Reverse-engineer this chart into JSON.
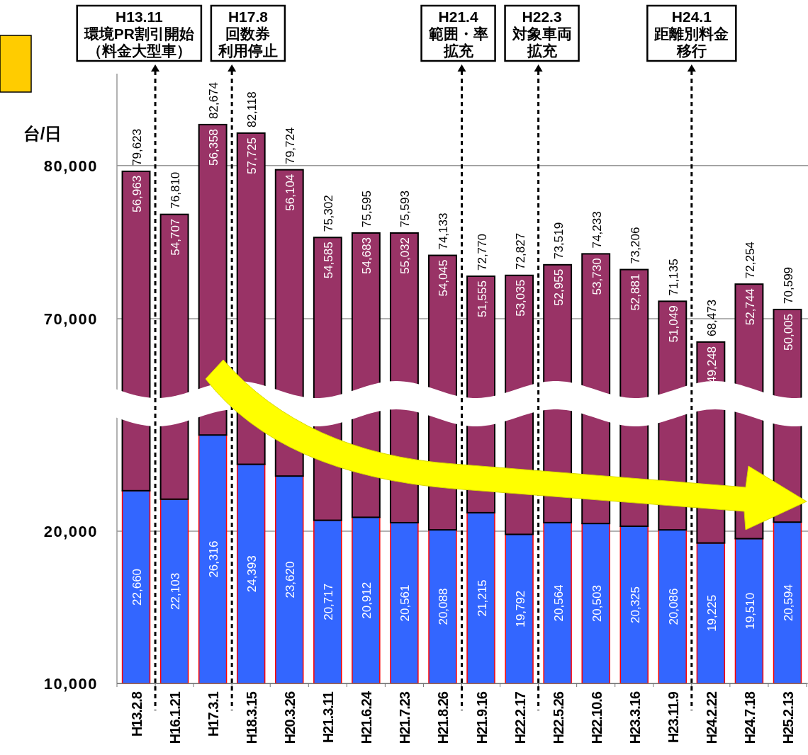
{
  "chart_data": [
    {
      "type": "bar",
      "ylabel": "台/日",
      "grid": "y",
      "ylim": [
        65000,
        86000
      ],
      "yticks": [
        {
          "value": 70000,
          "label": "70,000"
        },
        {
          "value": 80000,
          "label": "80,000"
        }
      ],
      "categories": [
        null,
        null,
        null,
        null,
        null,
        null,
        null,
        null,
        null,
        null,
        null,
        null,
        null,
        null,
        null,
        null,
        null,
        null
      ],
      "series": [
        {
          "color": "#993366",
          "values": [
            79623,
            76810,
            82674,
            82118,
            79724,
            75302,
            75595,
            75593,
            74133,
            72770,
            72827,
            73519,
            74233,
            73206,
            71135,
            68473,
            72254,
            70599
          ],
          "value_labels": [
            "79,623",
            "76,810",
            "82,674",
            "82,118",
            "79,724",
            "75,302",
            "75,595",
            "75,593",
            "74,133",
            "72,770",
            "72,827",
            "73,519",
            "74,233",
            "73,206",
            "71,135",
            "68,473",
            "72,254",
            "70,599"
          ]
        }
      ],
      "annotations": [
        "56,963",
        "54,707",
        "56,358",
        "57,725",
        "56,104",
        "54,585",
        "54,683",
        "55,032",
        "54,045",
        "51,555",
        "53,035",
        "52,955",
        "53,730",
        "52,881",
        "51,049",
        "49,248",
        "52,744",
        "50,005",
        "H13.11",
        "環境PR割引開始",
        "（料金大型車）",
        "H17.8",
        "回数券",
        "利用停止",
        "H21.4",
        "範囲・率",
        "拡充",
        "H22.3",
        "対象車両",
        "拡充",
        "H24.1",
        "距離別料金",
        "移行"
      ]
    },
    {
      "type": "bar",
      "grid": "y",
      "ylim": [
        10000,
        28000
      ],
      "yticks": [
        {
          "value": 10000,
          "label": "10,000"
        },
        {
          "value": 20000,
          "label": "20,000"
        }
      ],
      "categories": [
        "H13.2.8",
        "H16.1.21",
        "H17.3.1",
        "H18.3.15",
        "H20.3.26",
        "H21.3.11",
        "H21.6.24",
        "H21.7.23",
        "H21.8.26",
        "H21.9.16",
        "H22.2.17",
        "H22.5.26",
        "H22.10.6",
        "H23.3.16",
        "H23.11.9",
        "H24.2.22",
        "H24.7.18",
        "H25.2.13"
      ],
      "series": [
        {
          "color": "#3366ff",
          "values": [
            22660,
            22103,
            26316,
            24393,
            23620,
            20717,
            20912,
            20561,
            20088,
            21215,
            19792,
            20564,
            20503,
            20325,
            20086,
            19225,
            19510,
            20594
          ],
          "value_labels": [
            "22,660",
            "22,103",
            "26,316",
            "24,393",
            "23,620",
            "20,717",
            "20,912",
            "20,561",
            "20,088",
            "21,215",
            "19,792",
            "20,564",
            "20,503",
            "20,325",
            "20,086",
            "19,225",
            "19,510",
            "20,594"
          ]
        }
      ]
    }
  ]
}
